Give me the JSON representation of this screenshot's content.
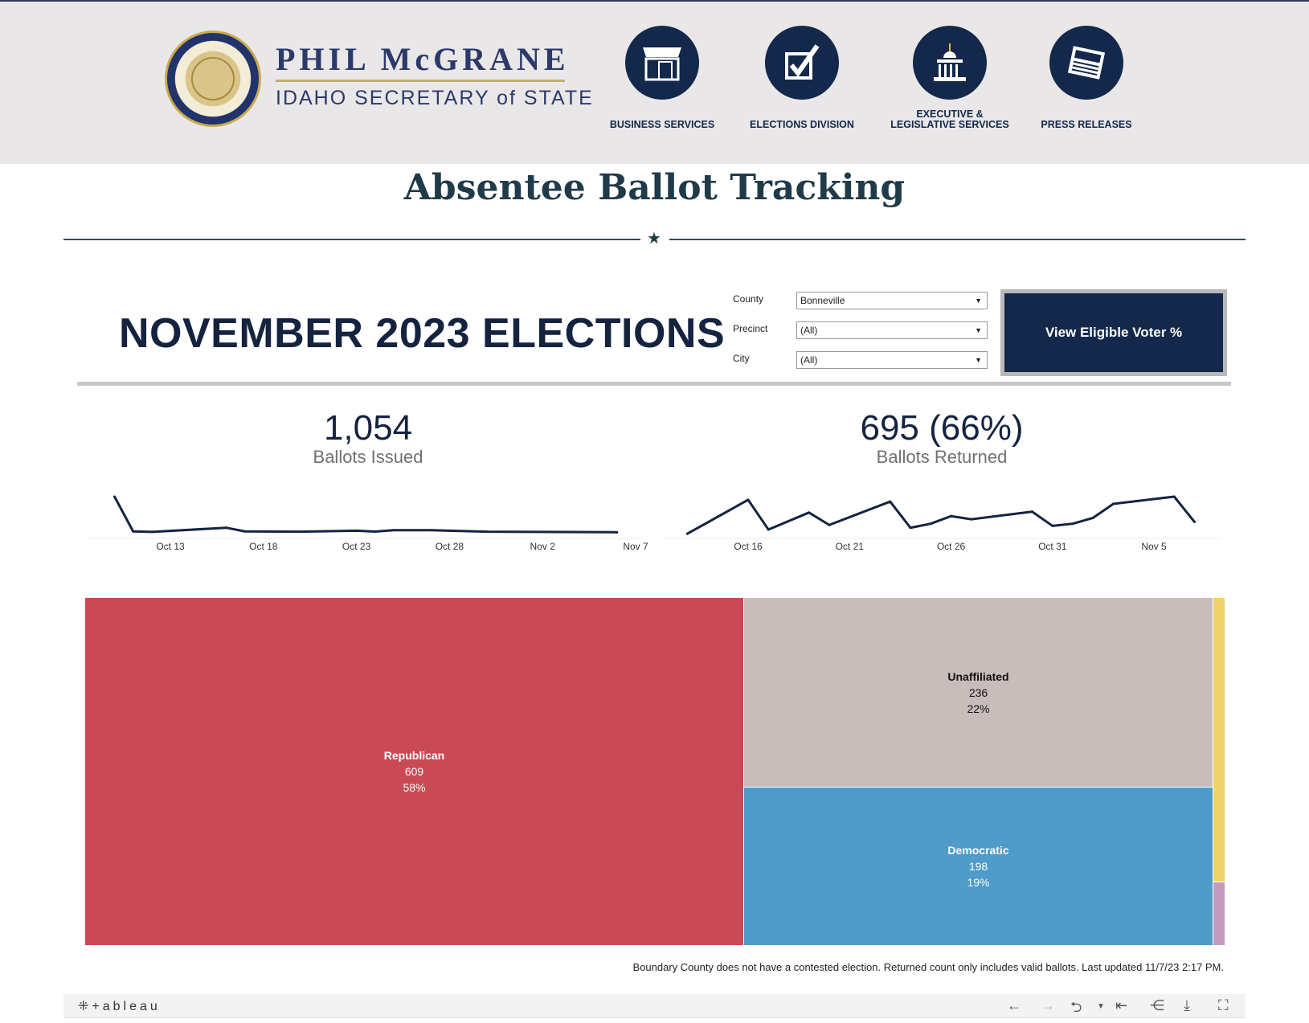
{
  "header": {
    "seal_text": "GREAT SEAL OF THE STATE OF IDAHO",
    "brand_name": "PHIL McGRANE",
    "brand_sub": "IDAHO SECRETARY of STATE",
    "nav": [
      {
        "label": "BUSINESS SERVICES",
        "icon": "storefront-icon"
      },
      {
        "label": "ELECTIONS DIVISION",
        "icon": "ballot-check-icon"
      },
      {
        "label": "EXECUTIVE & LEGISLATIVE SERVICES",
        "icon": "capitol-building-icon"
      },
      {
        "label": "PRESS RELEASES",
        "icon": "newspaper-icon"
      }
    ]
  },
  "page_title": "Absentee Ballot Tracking",
  "dashboard": {
    "title": "NOVEMBER 2023 ELECTIONS",
    "filters": [
      {
        "label": "County",
        "value": "Bonneville"
      },
      {
        "label": "Precinct",
        "value": "(All)"
      },
      {
        "label": "City",
        "value": "(All)"
      }
    ],
    "voter_button": "View Eligible Voter %",
    "issued": {
      "value": "1,054",
      "label": "Ballots Issued"
    },
    "returned": {
      "value": "695 (66%)",
      "label": "Ballots Returned"
    },
    "footnote": "Boundary County does not have a contested election. Returned count only includes valid ballots. Last updated 11/7/23 2:17 PM."
  },
  "colors": {
    "republican": "#c94a55",
    "unaffiliated": "#c8bdba",
    "democratic": "#4f9bc9",
    "other1": "#efd36a",
    "other2": "#c39bbf",
    "line": "#14233f"
  },
  "chart_data": [
    {
      "type": "line",
      "title": "",
      "ticks": [
        "Oct 13",
        "Oct 18",
        "Oct 23",
        "Oct 28",
        "Nov 2",
        "Nov 7"
      ],
      "points": [
        [
          "2023-10-10",
          222
        ],
        [
          "2023-10-11",
          22
        ],
        [
          "2023-10-12",
          19
        ],
        [
          "2023-10-13",
          25
        ],
        [
          "2023-10-16",
          43
        ],
        [
          "2023-10-17",
          22
        ],
        [
          "2023-10-20",
          20
        ],
        [
          "2023-10-23",
          26
        ],
        [
          "2023-10-24",
          21
        ],
        [
          "2023-10-25",
          29
        ],
        [
          "2023-10-27",
          29
        ],
        [
          "2023-10-30",
          20
        ],
        [
          "2023-11-06",
          17
        ]
      ]
    },
    {
      "type": "line",
      "title": "",
      "ticks": [
        "Oct 16",
        "Oct 21",
        "Oct 26",
        "Oct 31",
        "Nov 5"
      ],
      "points": [
        [
          "2023-10-13",
          8
        ],
        [
          "2023-10-16",
          200
        ],
        [
          "2023-10-17",
          32
        ],
        [
          "2023-10-19",
          128
        ],
        [
          "2023-10-20",
          58
        ],
        [
          "2023-10-23",
          190
        ],
        [
          "2023-10-24",
          42
        ],
        [
          "2023-10-25",
          65
        ],
        [
          "2023-10-26",
          108
        ],
        [
          "2023-10-27",
          90
        ],
        [
          "2023-10-30",
          133
        ],
        [
          "2023-10-31",
          53
        ],
        [
          "2023-11-01",
          65
        ],
        [
          "2023-11-02",
          98
        ],
        [
          "2023-11-03",
          177
        ],
        [
          "2023-11-06",
          218
        ],
        [
          "2023-11-07",
          75
        ]
      ]
    },
    {
      "type": "treemap",
      "items": [
        {
          "name": "Republican",
          "value": 609,
          "pct": "58%"
        },
        {
          "name": "Unaffiliated",
          "value": 236,
          "pct": "22%"
        },
        {
          "name": "Democratic",
          "value": 198,
          "pct": "19%"
        }
      ]
    }
  ],
  "footer": {
    "logo": "+ableau"
  }
}
